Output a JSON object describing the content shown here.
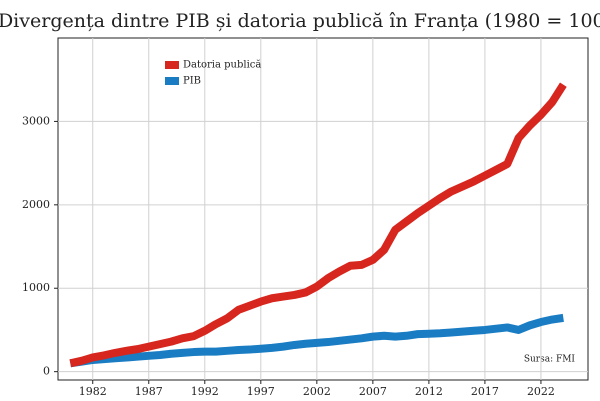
{
  "chart_data": {
    "type": "line",
    "title": "Divergența dintre PIB și datoria publică în Franța (1980 = 100)",
    "annotation": "Sursa: FMI",
    "x": [
      1980,
      1981,
      1982,
      1983,
      1984,
      1985,
      1986,
      1987,
      1988,
      1989,
      1990,
      1991,
      1992,
      1993,
      1994,
      1995,
      1996,
      1997,
      1998,
      1999,
      2000,
      2001,
      2002,
      2003,
      2004,
      2005,
      2006,
      2007,
      2008,
      2009,
      2010,
      2011,
      2012,
      2013,
      2014,
      2015,
      2016,
      2017,
      2018,
      2019,
      2020,
      2021,
      2022,
      2023,
      2024
    ],
    "series": [
      {
        "name": "Datoria publică",
        "color": "#d7261e",
        "values": [
          100,
          130,
          170,
          195,
          225,
          250,
          270,
          300,
          330,
          360,
          400,
          425,
          490,
          570,
          640,
          740,
          790,
          840,
          880,
          900,
          920,
          950,
          1020,
          1120,
          1200,
          1270,
          1280,
          1340,
          1460,
          1700,
          1800,
          1900,
          1990,
          2080,
          2160,
          2220,
          2280,
          2350,
          2420,
          2490,
          2800,
          2950,
          3080,
          3230,
          3440
        ]
      },
      {
        "name": "PIB",
        "color": "#1a7dc4",
        "values": [
          100,
          120,
          140,
          150,
          160,
          170,
          180,
          190,
          200,
          215,
          225,
          235,
          240,
          240,
          250,
          260,
          265,
          275,
          285,
          300,
          320,
          335,
          345,
          355,
          370,
          385,
          400,
          420,
          430,
          420,
          430,
          450,
          455,
          460,
          470,
          480,
          490,
          500,
          515,
          530,
          500,
          555,
          595,
          625,
          645
        ]
      }
    ],
    "xlim": [
      1978.9,
      2026.2
    ],
    "xticks": [
      1982,
      1987,
      1992,
      1997,
      2002,
      2007,
      2012,
      2017,
      2022
    ],
    "ylim": [
      -100,
      4000
    ],
    "yticks": [
      0,
      1000,
      2000,
      3000
    ],
    "grid": true,
    "legend": "upper left"
  }
}
